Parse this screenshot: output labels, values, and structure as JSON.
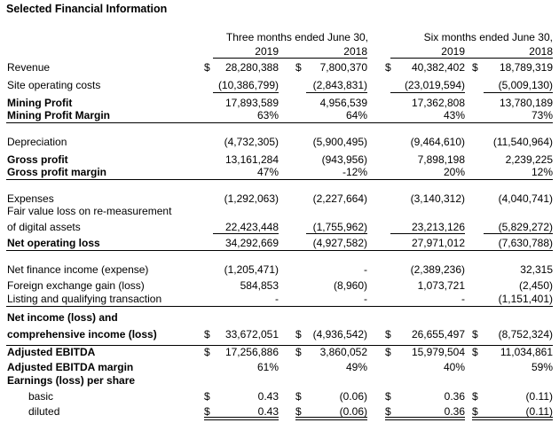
{
  "title": "Selected Financial Information",
  "headers": {
    "three_months": "Three months ended June 30,",
    "six_months": "Six months ended June 30,",
    "y2019": "2019",
    "y2018": "2018"
  },
  "currency": "$",
  "rows": [
    {
      "label": "Revenue",
      "c1": "28,280,388",
      "c2": "7,800,370",
      "c3": "40,382,402",
      "c4": "18,789,319"
    },
    {
      "label": "Site operating costs",
      "c1": "(10,386,799)",
      "c2": "(2,843,831)",
      "c3": "(23,019,594)",
      "c4": "(5,009,130)"
    },
    {
      "label": "Mining Profit",
      "c1": "17,893,589",
      "c2": "4,956,539",
      "c3": "17,362,808",
      "c4": "13,780,189"
    },
    {
      "label": "Mining Profit Margin",
      "c1": "63%",
      "c2": "64%",
      "c3": "43%",
      "c4": "73%"
    },
    {
      "label": "Depreciation",
      "c1": "(4,732,305)",
      "c2": "(5,900,495)",
      "c3": "(9,464,610)",
      "c4": "(11,540,964)"
    },
    {
      "label": "Gross profit",
      "c1": "13,161,284",
      "c2": "(943,956)",
      "c3": "7,898,198",
      "c4": "2,239,225"
    },
    {
      "label": "Gross profit margin",
      "c1": "47%",
      "c2": "-12%",
      "c3": "20%",
      "c4": "12%"
    },
    {
      "label": "Expenses",
      "c1": "(1,292,063)",
      "c2": "(2,227,664)",
      "c3": "(3,140,312)",
      "c4": "(4,040,741)"
    },
    {
      "label": "Fair value loss on re-measurement"
    },
    {
      "label": "of digital assets",
      "c1": "22,423,448",
      "c2": "(1,755,962)",
      "c3": "23,213,126",
      "c4": "(5,829,272)"
    },
    {
      "label": "Net operating loss",
      "c1": "34,292,669",
      "c2": "(4,927,582)",
      "c3": "27,971,012",
      "c4": "(7,630,788)"
    },
    {
      "label": "Net finance income (expense)",
      "c1": "(1,205,471)",
      "c2": "-",
      "c3": "(2,389,236)",
      "c4": "32,315"
    },
    {
      "label": "Foreign exchange gain (loss)",
      "c1": "584,853",
      "c2": "(8,960)",
      "c3": "1,073,721",
      "c4": "(2,450)"
    },
    {
      "label": "Listing and qualifying transaction",
      "c1": "-",
      "c2": "-",
      "c3": "-",
      "c4": "(1,151,401)"
    },
    {
      "label": "Net income (loss) and"
    },
    {
      "label": "comprehensive income (loss)",
      "c1": "33,672,051",
      "c2": "(4,936,542)",
      "c3": "26,655,497",
      "c4": "(8,752,324)"
    },
    {
      "label": "Adjusted EBITDA",
      "c1": "17,256,886",
      "c2": "3,860,052",
      "c3": "15,979,504",
      "c4": "11,034,861"
    },
    {
      "label": "Adjusted EBITDA margin",
      "c1": "61%",
      "c2": "49%",
      "c3": "40%",
      "c4": "59%"
    },
    {
      "label": "Earnings (loss) per share"
    },
    {
      "label": "basic",
      "c1": "0.43",
      "c2": "(0.06)",
      "c3": "0.36",
      "c4": "(0.11)"
    },
    {
      "label": "diluted",
      "c1": "0.43",
      "c2": "(0.06)",
      "c3": "0.36",
      "c4": "(0.11)"
    }
  ]
}
